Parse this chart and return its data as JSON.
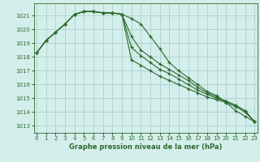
{
  "title": "Graphe pression niveau de la mer (hPa)",
  "bg_color": "#d4eeec",
  "grid_color": "#aacfcc",
  "line_color": "#2d6a2d",
  "x_ticks": [
    0,
    1,
    2,
    3,
    4,
    5,
    6,
    7,
    8,
    9,
    10,
    11,
    12,
    13,
    14,
    15,
    16,
    17,
    18,
    19,
    20,
    21,
    22,
    23
  ],
  "y_ticks": [
    1013,
    1014,
    1015,
    1016,
    1017,
    1018,
    1019,
    1020,
    1021
  ],
  "ylim": [
    1012.5,
    1021.9
  ],
  "xlim": [
    -0.3,
    23.3
  ],
  "series": [
    [
      1018.3,
      1019.2,
      1019.8,
      1020.4,
      1021.1,
      1021.3,
      1021.3,
      1021.2,
      1021.2,
      1021.1,
      1020.8,
      1020.4,
      1019.5,
      1018.6,
      1017.6,
      1017.0,
      1016.5,
      1016.0,
      1015.5,
      1015.2,
      1014.7,
      1014.1,
      1013.7,
      1013.3
    ],
    [
      1018.3,
      1019.2,
      1019.8,
      1020.4,
      1021.1,
      1021.3,
      1021.3,
      1021.2,
      1021.2,
      1021.1,
      1019.5,
      1018.5,
      1018.0,
      1017.5,
      1017.1,
      1016.7,
      1016.3,
      1015.8,
      1015.4,
      1015.1,
      1014.8,
      1014.5,
      1014.1,
      1013.3
    ],
    [
      1018.3,
      1019.2,
      1019.8,
      1020.4,
      1021.1,
      1021.3,
      1021.3,
      1021.2,
      1021.2,
      1021.1,
      1018.7,
      1018.1,
      1017.6,
      1017.1,
      1016.8,
      1016.4,
      1016.0,
      1015.6,
      1015.3,
      1015.0,
      1014.8,
      1014.5,
      1014.1,
      1013.3
    ],
    [
      1018.3,
      1019.2,
      1019.8,
      1020.4,
      1021.1,
      1021.3,
      1021.3,
      1021.2,
      1021.2,
      1021.1,
      1017.8,
      1017.4,
      1017.0,
      1016.6,
      1016.3,
      1016.0,
      1015.7,
      1015.4,
      1015.1,
      1014.9,
      1014.7,
      1014.4,
      1014.0,
      1013.3
    ]
  ],
  "figsize": [
    3.2,
    2.0
  ],
  "dpi": 100
}
